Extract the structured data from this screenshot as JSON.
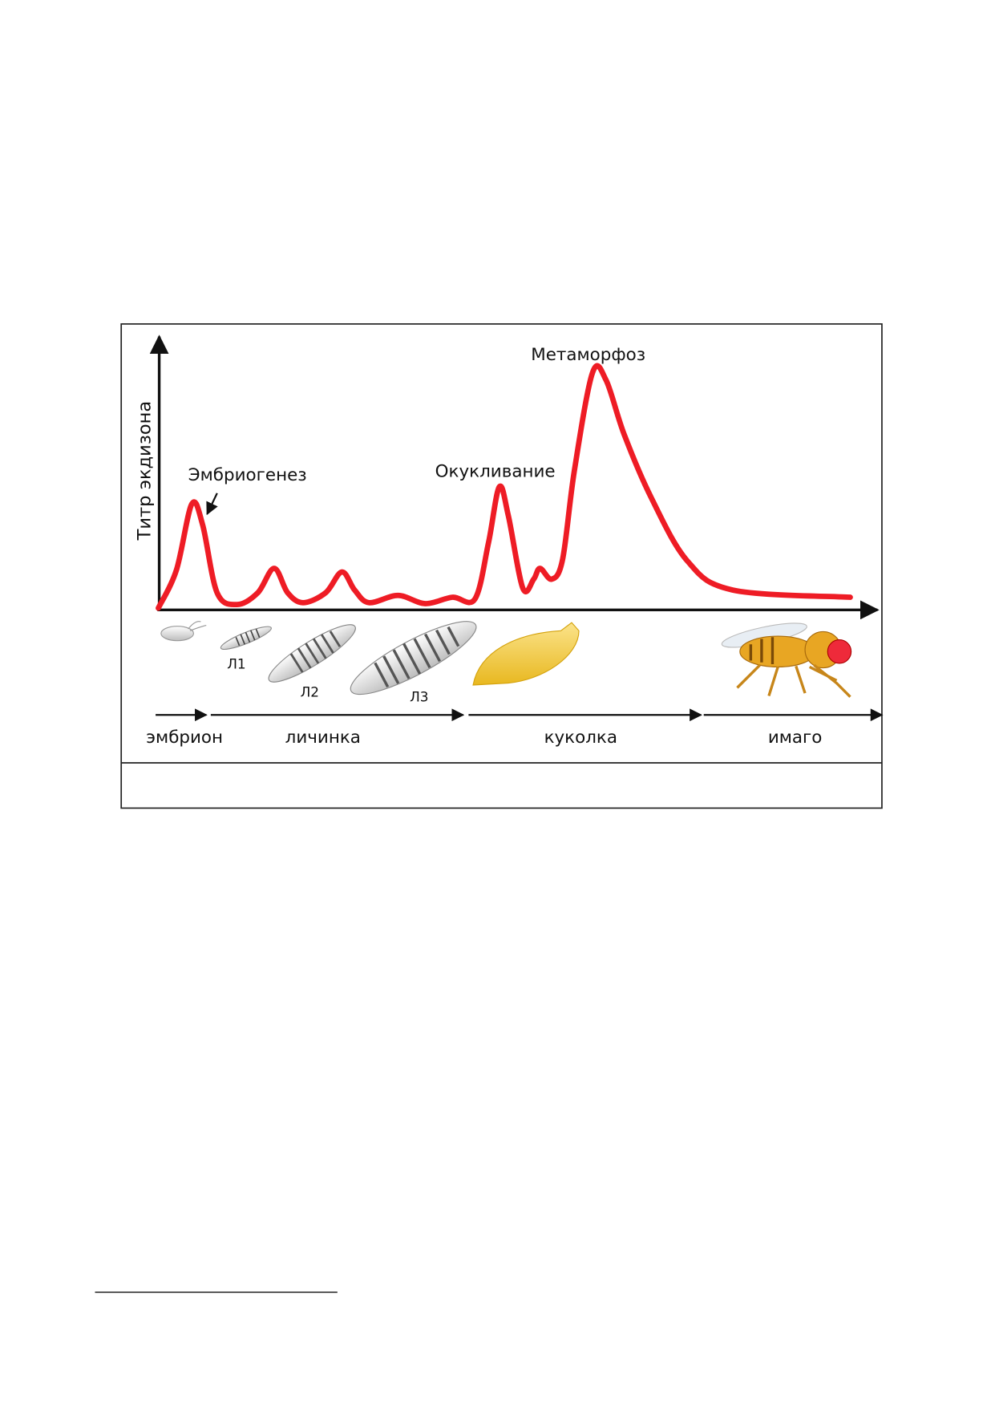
{
  "figure": {
    "y_axis_label": "Титр экдизона",
    "peaks": [
      "Эмбриогенез",
      "Окукливание",
      "Метаморфоз"
    ],
    "larvae": [
      "Л1",
      "Л2",
      "Л3"
    ],
    "stages": [
      "эмбрион",
      "личинка",
      "куколка",
      "имаго"
    ]
  }
}
